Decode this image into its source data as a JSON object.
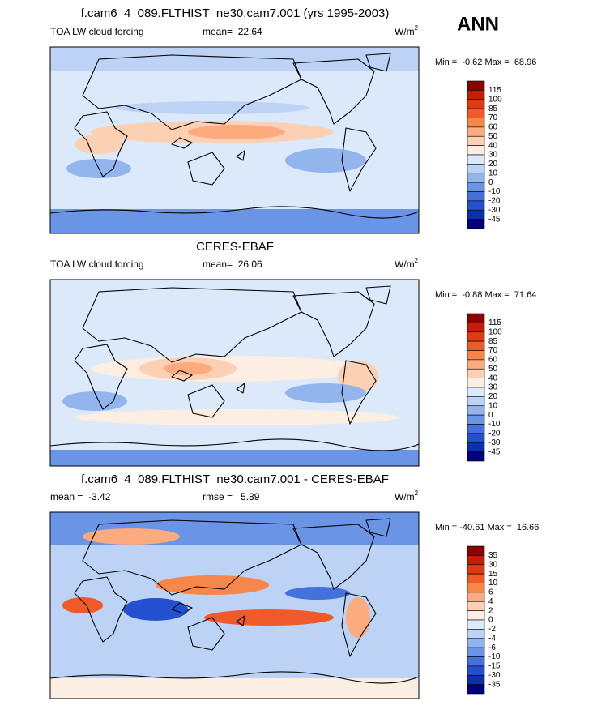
{
  "header": {
    "title": "f.cam6_4_089.FLTHIST_ne30.cam7.001 (yrs 1995-2003)",
    "season": "ANN"
  },
  "panels": [
    {
      "left": "TOA LW cloud forcing",
      "center": "mean=  22.64",
      "units": {
        "base": "W/m",
        "sup": "2"
      },
      "minmax": "Min =  -0.62 Max =  68.96",
      "colorbar": {
        "labels": [
          115,
          100,
          85,
          70,
          60,
          50,
          40,
          30,
          20,
          10,
          0,
          -10,
          -20,
          -30,
          -45
        ],
        "colors": [
          "#8b0000",
          "#c41e0a",
          "#e03a12",
          "#f05a28",
          "#f7864a",
          "#fbab7d",
          "#fcd0b3",
          "#fdeee3",
          "#dbe9fb",
          "#bcd3f5",
          "#92b5ee",
          "#6a94e6",
          "#4472dd",
          "#2250d0",
          "#0a2fb0",
          "#00007a"
        ]
      }
    },
    {
      "title": "CERES-EBAF",
      "left": "TOA LW cloud forcing",
      "center": "mean=  26.06",
      "units": {
        "base": "W/m",
        "sup": "2"
      },
      "minmax": "Min =  -0.88 Max =  71.64",
      "colorbar": {
        "labels": [
          115,
          100,
          85,
          70,
          60,
          50,
          40,
          30,
          20,
          10,
          0,
          -10,
          -20,
          -30,
          -45
        ],
        "colors": [
          "#8b0000",
          "#c41e0a",
          "#e03a12",
          "#f05a28",
          "#f7864a",
          "#fbab7d",
          "#fcd0b3",
          "#fdeee3",
          "#dbe9fb",
          "#bcd3f5",
          "#92b5ee",
          "#6a94e6",
          "#4472dd",
          "#2250d0",
          "#0a2fb0",
          "#00007a"
        ]
      }
    },
    {
      "title": "f.cam6_4_089.FLTHIST_ne30.cam7.001 - CERES-EBAF",
      "left": "mean =  -3.42",
      "center": "rmse =   5.89",
      "units": {
        "base": "W/m",
        "sup": "2"
      },
      "minmax": "Min = -40.61 Max =  16.66",
      "colorbar": {
        "labels": [
          35,
          30,
          15,
          10,
          6,
          4,
          2,
          0,
          -2,
          -4,
          -6,
          -10,
          -15,
          -30,
          -35
        ],
        "colors": [
          "#8b0000",
          "#c41e0a",
          "#e03a12",
          "#f05a28",
          "#f7864a",
          "#fbab7d",
          "#fcd0b3",
          "#fdeee3",
          "#dbe9fb",
          "#bcd3f5",
          "#92b5ee",
          "#6a94e6",
          "#4472dd",
          "#2250d0",
          "#0a2fb0",
          "#00007a"
        ]
      }
    }
  ]
}
